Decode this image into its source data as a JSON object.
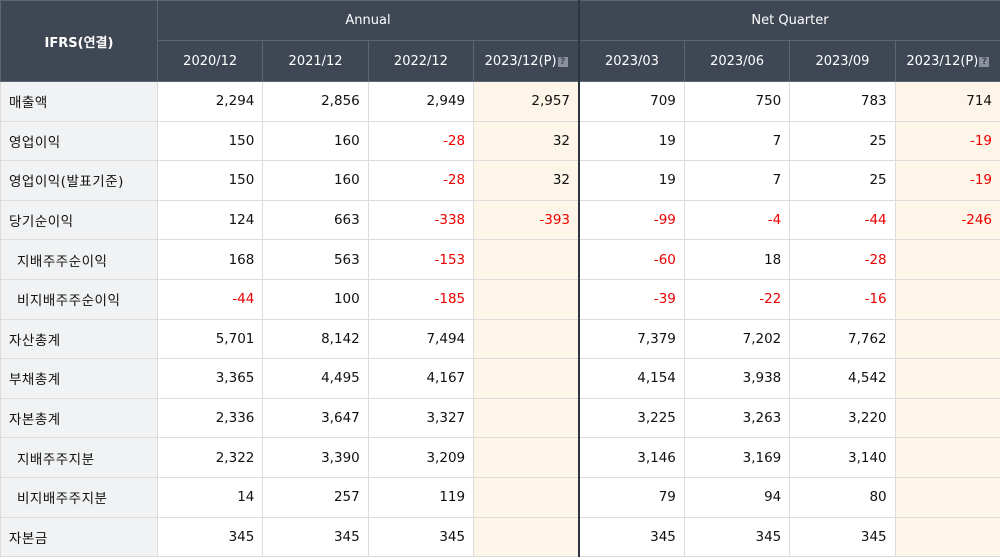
{
  "header": {
    "corner": "IFRS(연결)",
    "groups": {
      "annual": "Annual",
      "quarter": "Net Quarter"
    },
    "periods": [
      "2020/12",
      "2021/12",
      "2022/12",
      "2023/12(P)",
      "2023/03",
      "2023/06",
      "2023/09",
      "2023/12(P)"
    ],
    "estimate_icon": "?"
  },
  "rows": [
    {
      "label": "매출액",
      "values": [
        "2,294",
        "2,856",
        "2,949",
        "2,957",
        "709",
        "750",
        "783",
        "714"
      ]
    },
    {
      "label": "영업이익",
      "values": [
        "150",
        "160",
        "-28",
        "32",
        "19",
        "7",
        "25",
        "-19"
      ]
    },
    {
      "label": "영업이익(발표기준)",
      "values": [
        "150",
        "160",
        "-28",
        "32",
        "19",
        "7",
        "25",
        "-19"
      ]
    },
    {
      "label": "당기순이익",
      "values": [
        "124",
        "663",
        "-338",
        "-393",
        "-99",
        "-4",
        "-44",
        "-246"
      ]
    },
    {
      "label": "지배주주순이익",
      "values": [
        "168",
        "563",
        "-153",
        "",
        "-60",
        "18",
        "-28",
        ""
      ]
    },
    {
      "label": "비지배주주순이익",
      "values": [
        "-44",
        "100",
        "-185",
        "",
        "-39",
        "-22",
        "-16",
        ""
      ]
    },
    {
      "label": "자산총계",
      "values": [
        "5,701",
        "8,142",
        "7,494",
        "",
        "7,379",
        "7,202",
        "7,762",
        ""
      ]
    },
    {
      "label": "부채총계",
      "values": [
        "3,365",
        "4,495",
        "4,167",
        "",
        "4,154",
        "3,938",
        "4,542",
        ""
      ]
    },
    {
      "label": "자본총계",
      "values": [
        "2,336",
        "3,647",
        "3,327",
        "",
        "3,225",
        "3,263",
        "3,220",
        ""
      ]
    },
    {
      "label": "지배주주지분",
      "values": [
        "2,322",
        "3,390",
        "3,209",
        "",
        "3,146",
        "3,169",
        "3,140",
        ""
      ]
    },
    {
      "label": "비지배주주지분",
      "values": [
        "14",
        "257",
        "119",
        "",
        "79",
        "94",
        "80",
        ""
      ]
    },
    {
      "label": "자본금",
      "values": [
        "345",
        "345",
        "345",
        "",
        "345",
        "345",
        "345",
        ""
      ]
    }
  ],
  "colors": {
    "header_bg": "#3f4654",
    "label_bg": "#f1f2f4",
    "estimate_bg": "#fdf5e8",
    "negative": "#ee0000"
  }
}
